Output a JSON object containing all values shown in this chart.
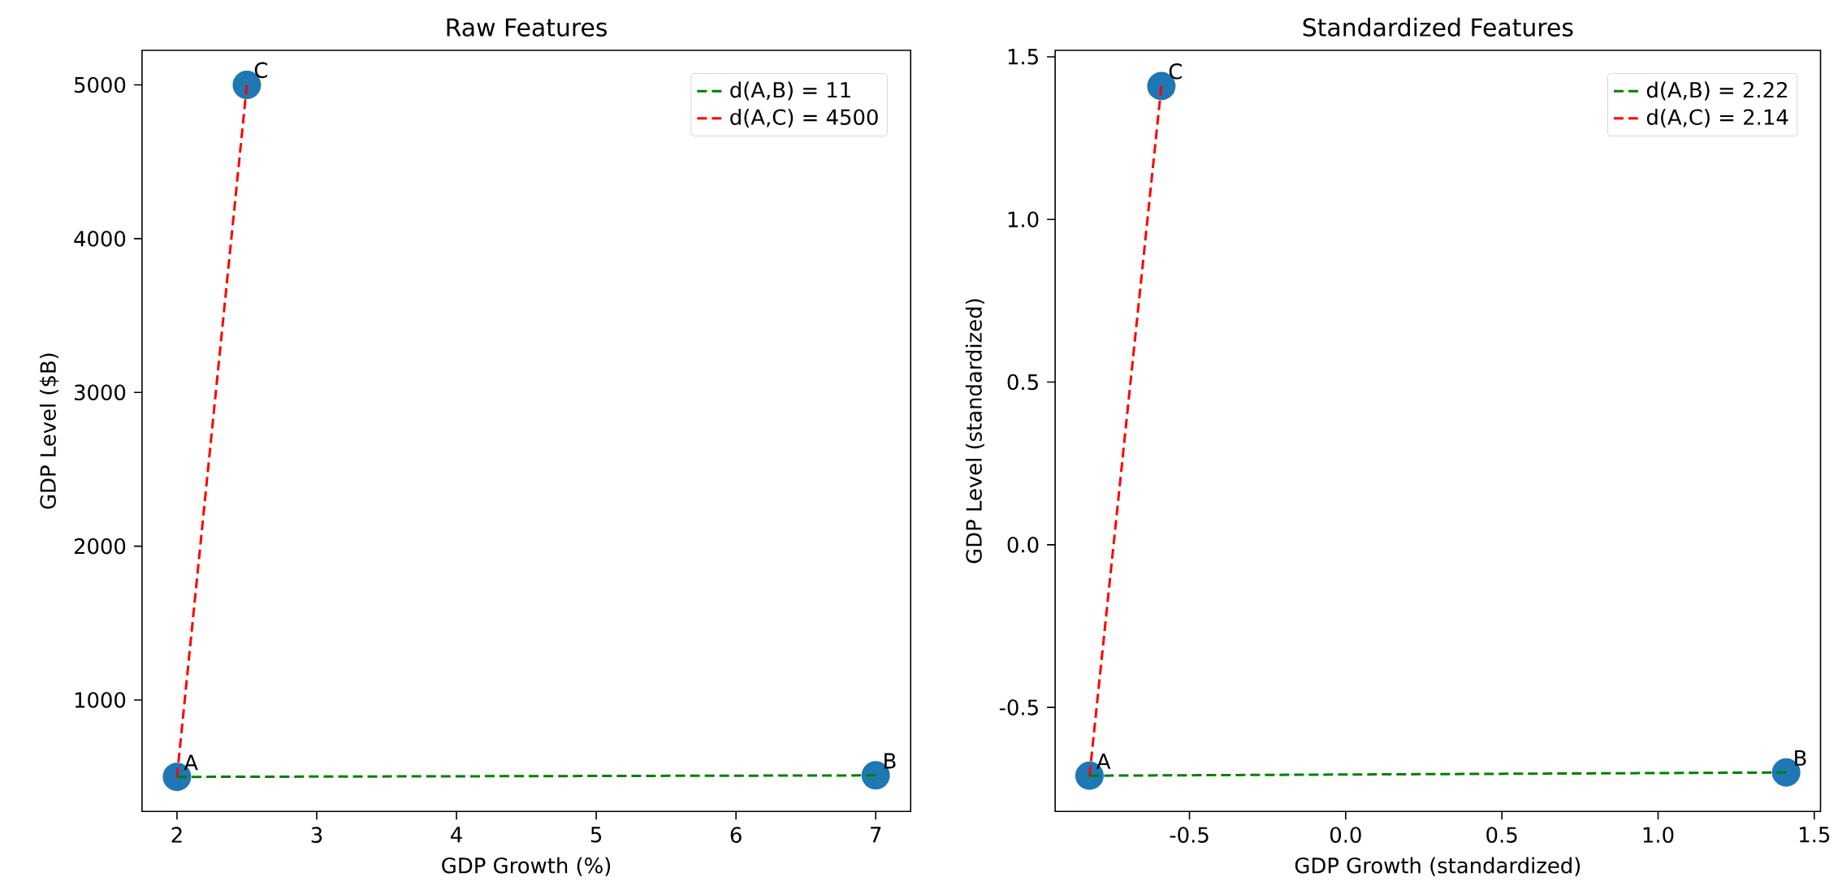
{
  "chart_data": [
    {
      "type": "scatter",
      "title": "Raw Features",
      "xlabel": "GDP Growth (%)",
      "ylabel": "GDP Level ($B)",
      "xlim": [
        1.75,
        7.25
      ],
      "ylim": [
        275,
        5225
      ],
      "xticks": [
        2,
        3,
        4,
        5,
        6,
        7
      ],
      "yticks": [
        1000,
        2000,
        3000,
        4000,
        5000
      ],
      "grid": false,
      "legend": "top right",
      "series": [
        {
          "type": "scatter",
          "color": "#1f77b4",
          "marker": "circle",
          "x": [
            2,
            7,
            2.5
          ],
          "values": [
            500,
            510,
            5000
          ]
        },
        {
          "type": "line",
          "name": "d(A,B) = 11",
          "color": "#008000",
          "line_style": "dashed",
          "marker": "none",
          "x": [
            2,
            7
          ],
          "values": [
            500,
            510
          ]
        },
        {
          "type": "line",
          "name": "d(A,C) = 4500",
          "color": "#ff0000",
          "line_style": "dashed",
          "marker": "none",
          "x": [
            2,
            2.5
          ],
          "values": [
            500,
            5000
          ]
        }
      ],
      "annotations": [
        {
          "text": "A",
          "x": 2,
          "y": 500
        },
        {
          "text": "B",
          "x": 7,
          "y": 510
        },
        {
          "text": "C",
          "x": 2.5,
          "y": 5000
        }
      ]
    },
    {
      "type": "scatter",
      "title": "Standardized Features",
      "xlabel": "GDP Growth (standardized)",
      "ylabel": "GDP Level (standardized)",
      "xlim": [
        -0.93,
        1.52
      ],
      "ylim": [
        -0.82,
        1.52
      ],
      "xticks": [
        -0.5,
        {
          "value": 0,
          "label": "0.0"
        },
        0.5,
        {
          "value": 1,
          "label": "1.0"
        },
        1.5
      ],
      "yticks": [
        -0.5,
        {
          "value": 0,
          "label": "0.0"
        },
        0.5,
        {
          "value": 1,
          "label": "1.0"
        },
        1.5
      ],
      "grid": false,
      "legend": "top right",
      "series": [
        {
          "type": "scatter",
          "color": "#1f77b4",
          "marker": "circle",
          "x": [
            -0.82,
            1.41,
            -0.59
          ],
          "values": [
            -0.71,
            -0.7,
            1.41
          ]
        },
        {
          "type": "line",
          "name": "d(A,B) = 2.22",
          "color": "#008000",
          "line_style": "dashed",
          "marker": "none",
          "x": [
            -0.82,
            1.41
          ],
          "values": [
            -0.71,
            -0.7
          ]
        },
        {
          "type": "line",
          "name": "d(A,C) = 2.14",
          "color": "#ff0000",
          "line_style": "dashed",
          "marker": "none",
          "x": [
            -0.82,
            -0.59
          ],
          "values": [
            -0.71,
            1.41
          ]
        }
      ],
      "annotations": [
        {
          "text": "A",
          "x": -0.82,
          "y": -0.71
        },
        {
          "text": "B",
          "x": 1.41,
          "y": -0.7
        },
        {
          "text": "C",
          "x": -0.59,
          "y": 1.41
        }
      ]
    }
  ]
}
